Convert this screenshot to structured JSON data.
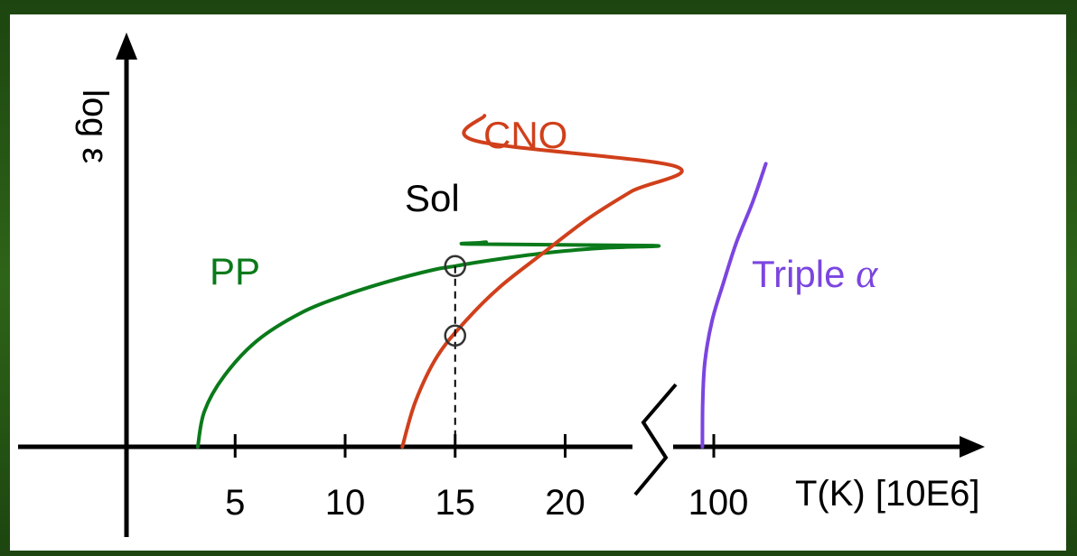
{
  "chart_data": {
    "type": "line",
    "xlabel": "T(K) [10E6]",
    "ylabel": "log ε",
    "x_ticks": [
      "5",
      "10",
      "15",
      "20",
      "100"
    ],
    "axis_break": "between 20 and 100",
    "grid": false,
    "series": [
      {
        "name": "PP",
        "color": "#0a7a1a",
        "x": [
          3.3,
          3.6,
          4.5,
          6,
          8,
          10,
          12,
          14,
          15,
          16,
          18,
          20,
          22,
          24,
          26,
          28,
          30
        ],
        "y": [
          0,
          1.4,
          2.8,
          4.2,
          5.3,
          6.0,
          6.55,
          7.0,
          7.15,
          7.3,
          7.55,
          7.75,
          7.88,
          7.96,
          8.02,
          8.07,
          8.1
        ]
      },
      {
        "name": "CNO",
        "color": "#d0401b",
        "x": [
          12.6,
          13.2,
          14.2,
          15.5,
          17,
          18.9,
          21,
          23,
          25,
          27,
          29.5
        ],
        "y": [
          0,
          1.8,
          3.6,
          5.0,
          6.3,
          7.6,
          9.0,
          10.1,
          11.1,
          12.1,
          13.1
        ]
      },
      {
        "name": "Triple α",
        "color": "#7b45e0",
        "x": [
          96.5,
          96.6,
          97.3,
          99.5,
          103,
          107,
          112,
          116
        ],
        "y": [
          0,
          1.8,
          3.4,
          5.0,
          6.5,
          8.1,
          9.7,
          11.2
        ]
      }
    ],
    "annotations": [
      {
        "text": "Sol",
        "x": 15,
        "markers_y": [
          7.15,
          4.4
        ],
        "dashed_to_axis": true
      }
    ]
  },
  "labels": {
    "pp": "PP",
    "cno": "CNO",
    "triple": "Triple ",
    "alpha": "α",
    "sol": "Sol",
    "ylabel": "log ε"
  },
  "colors": {
    "axis": "#000000",
    "pp": "#0a7a1a",
    "cno": "#d0401b",
    "triple": "#7b45e0"
  }
}
